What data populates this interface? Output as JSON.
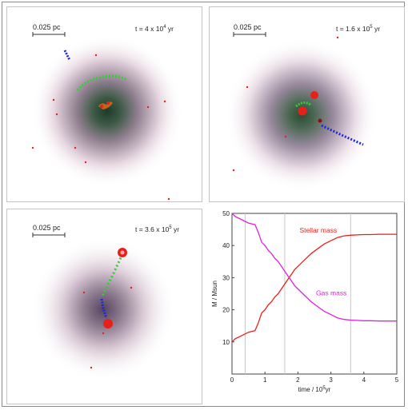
{
  "panels": [
    {
      "scale_label": "0.025 pc",
      "time_prefix": "t = 4 x 10",
      "time_exp": "4",
      "time_suffix": " yr"
    },
    {
      "scale_label": "0.025 pc",
      "time_prefix": "t = 1.6 x 10",
      "time_exp": "5",
      "time_suffix": " yr"
    },
    {
      "scale_label": "0.025 pc",
      "time_prefix": "t = 3.6 x 10",
      "time_exp": "5",
      "time_suffix": " yr"
    }
  ],
  "colors": {
    "stellar": "#e8201a",
    "gas": "#e020e0",
    "green_trail": "#2ed12e",
    "blue_trail": "#1a2ad8",
    "red_marker": "#e8201a"
  },
  "chart_data": {
    "type": "line",
    "xlabel_prefix": "time / 10",
    "xlabel_exp": "5",
    "xlabel_suffix": "yr",
    "ylabel": "M / Msun",
    "xlim": [
      0,
      5
    ],
    "ylim": [
      0,
      50
    ],
    "x_ticks": [
      "0",
      "1",
      "2",
      "3",
      "4",
      "5"
    ],
    "y_ticks": [
      "10",
      "20",
      "30",
      "40",
      "50"
    ],
    "x_tick_values": [
      0,
      1,
      2,
      3,
      4,
      5
    ],
    "y_tick_values": [
      10,
      20,
      30,
      40,
      50
    ],
    "vertical_markers": [
      0.4,
      1.6,
      3.6
    ],
    "series": [
      {
        "name": "Stellar mass",
        "color": "#e8201a",
        "x": [
          0,
          0.1,
          0.3,
          0.5,
          0.7,
          0.8,
          0.9,
          1.0,
          1.1,
          1.2,
          1.3,
          1.4,
          1.5,
          1.6,
          1.7,
          1.8,
          1.9,
          2.0,
          2.2,
          2.4,
          2.6,
          2.8,
          3.0,
          3.2,
          3.4,
          3.6,
          3.8,
          4.0,
          4.2,
          4.5,
          4.8,
          5.0
        ],
        "values": [
          10,
          11,
          12,
          13,
          13.5,
          16,
          19,
          20,
          21.5,
          22.5,
          24,
          25,
          26.5,
          28,
          29.5,
          31,
          32.5,
          33.5,
          35.5,
          37.5,
          39,
          40.5,
          41.5,
          42.5,
          43,
          43.2,
          43.3,
          43.4,
          43.4,
          43.5,
          43.5,
          43.5
        ]
      },
      {
        "name": "Gas mass",
        "color": "#e020e0",
        "x": [
          0,
          0.1,
          0.3,
          0.5,
          0.7,
          0.8,
          0.9,
          1.0,
          1.1,
          1.2,
          1.3,
          1.4,
          1.5,
          1.6,
          1.7,
          1.8,
          1.9,
          2.0,
          2.2,
          2.4,
          2.6,
          2.8,
          3.0,
          3.2,
          3.4,
          3.6,
          3.8,
          4.0,
          4.2,
          4.5,
          4.8,
          5.0
        ],
        "values": [
          50,
          49,
          48,
          47,
          46.5,
          44,
          41,
          40,
          38.5,
          37.5,
          36,
          35,
          33.5,
          32,
          30.5,
          29,
          27.5,
          26.5,
          24.5,
          22.5,
          21,
          19.5,
          18.5,
          17.5,
          17,
          16.8,
          16.7,
          16.6,
          16.6,
          16.5,
          16.5,
          16.5
        ]
      }
    ],
    "annotations": [
      {
        "text": "Stellar mass",
        "x": 2.05,
        "y": 44,
        "color": "#e8201a"
      },
      {
        "text": "Gas mass",
        "x": 2.55,
        "y": 24.5,
        "color": "#e020e0"
      }
    ]
  }
}
